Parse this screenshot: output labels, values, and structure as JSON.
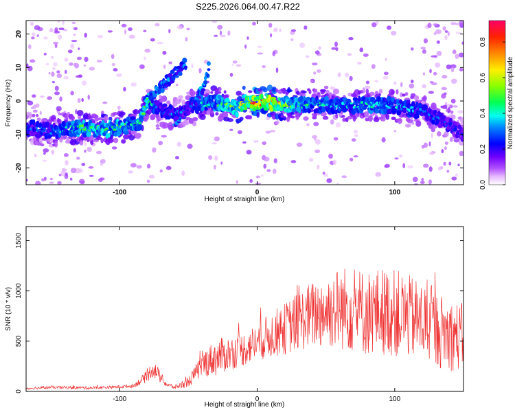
{
  "title": "S225.2026.064.00.47.R22",
  "chart_data": [
    {
      "type": "heatmap",
      "xlabel": "Height of straight line (km)",
      "ylabel": "Frequency (Hz)",
      "xlim": [
        -168,
        150
      ],
      "ylim": [
        -25,
        24
      ],
      "xticks": [
        -100,
        0,
        100
      ],
      "yticks": [
        -20,
        -10,
        0,
        10,
        20
      ],
      "ridge": {
        "description": "main echo trace, frequency vs height",
        "x": [
          -168,
          -150,
          -130,
          -110,
          -95,
          -85,
          -80,
          -70,
          -60,
          -50,
          -40,
          -30,
          -20,
          -15,
          -10,
          0,
          10,
          20,
          40,
          60,
          80,
          100,
          120,
          135,
          150
        ],
        "y": [
          -8,
          -9,
          -8,
          -8.5,
          -7.5,
          -6,
          0,
          -3,
          -4,
          -2,
          -1,
          -0.5,
          -1.5,
          -2.5,
          -0.5,
          -0.5,
          -0.5,
          -1,
          -1,
          -1.5,
          -1,
          -1.5,
          -3,
          -6,
          -10
        ],
        "amplitude": [
          0.3,
          0.35,
          0.5,
          0.55,
          0.5,
          0.45,
          0.55,
          0.3,
          0.35,
          0.3,
          0.45,
          0.5,
          0.55,
          0.6,
          0.7,
          0.9,
          0.85,
          0.6,
          0.45,
          0.4,
          0.45,
          0.4,
          0.35,
          0.3,
          0.25
        ]
      },
      "branches": [
        {
          "x": [
            -80,
            -70,
            -60,
            -52
          ],
          "y": [
            0,
            4,
            8,
            11
          ],
          "amplitude": 0.3
        },
        {
          "x": [
            -60,
            -50,
            -40,
            -35
          ],
          "y": [
            -6,
            -2,
            3,
            10
          ],
          "amplitude": 0.3
        }
      ],
      "colorbar": {
        "label": "Normalized spectral amplitude",
        "range": [
          0,
          0.92
        ],
        "ticks": [
          "0.0",
          "0.2",
          "0.4",
          "0.6",
          "0.8"
        ],
        "colors": [
          "#ffffff",
          "#d88cff",
          "#9000ff",
          "#3300ff",
          "#0000ff",
          "#00aaff",
          "#00ffcc",
          "#00ff00",
          "#ccff00",
          "#ffaa00",
          "#ff3300",
          "#ff0066"
        ]
      }
    },
    {
      "type": "line",
      "xlabel": "Height of straight line (km)",
      "ylabel": "SNR (10 * v/v)",
      "xlim": [
        -168,
        150
      ],
      "ylim": [
        0,
        1640
      ],
      "xticks": [
        -100,
        0,
        100
      ],
      "yticks": [
        0,
        500,
        1000,
        1500
      ],
      "series_color": "#ee3030",
      "envelope": {
        "x": [
          -168,
          -150,
          -120,
          -100,
          -90,
          -80,
          -76,
          -72,
          -66,
          -60,
          -50,
          -45,
          -40,
          -35,
          -30,
          -25,
          -20,
          -10,
          0,
          10,
          20,
          30,
          40,
          50,
          60,
          70,
          80,
          90,
          100,
          110,
          120,
          130,
          140,
          150
        ],
        "mean": [
          30,
          40,
          35,
          45,
          55,
          150,
          230,
          170,
          70,
          40,
          90,
          180,
          260,
          310,
          330,
          360,
          380,
          420,
          490,
          560,
          620,
          700,
          760,
          800,
          830,
          820,
          780,
          800,
          780,
          740,
          700,
          620,
          560,
          540
        ],
        "spread": [
          12,
          15,
          15,
          15,
          18,
          60,
          90,
          70,
          30,
          20,
          50,
          80,
          120,
          160,
          180,
          180,
          170,
          170,
          190,
          230,
          260,
          300,
          340,
          380,
          420,
          440,
          430,
          440,
          440,
          420,
          400,
          380,
          360,
          340
        ]
      }
    }
  ]
}
